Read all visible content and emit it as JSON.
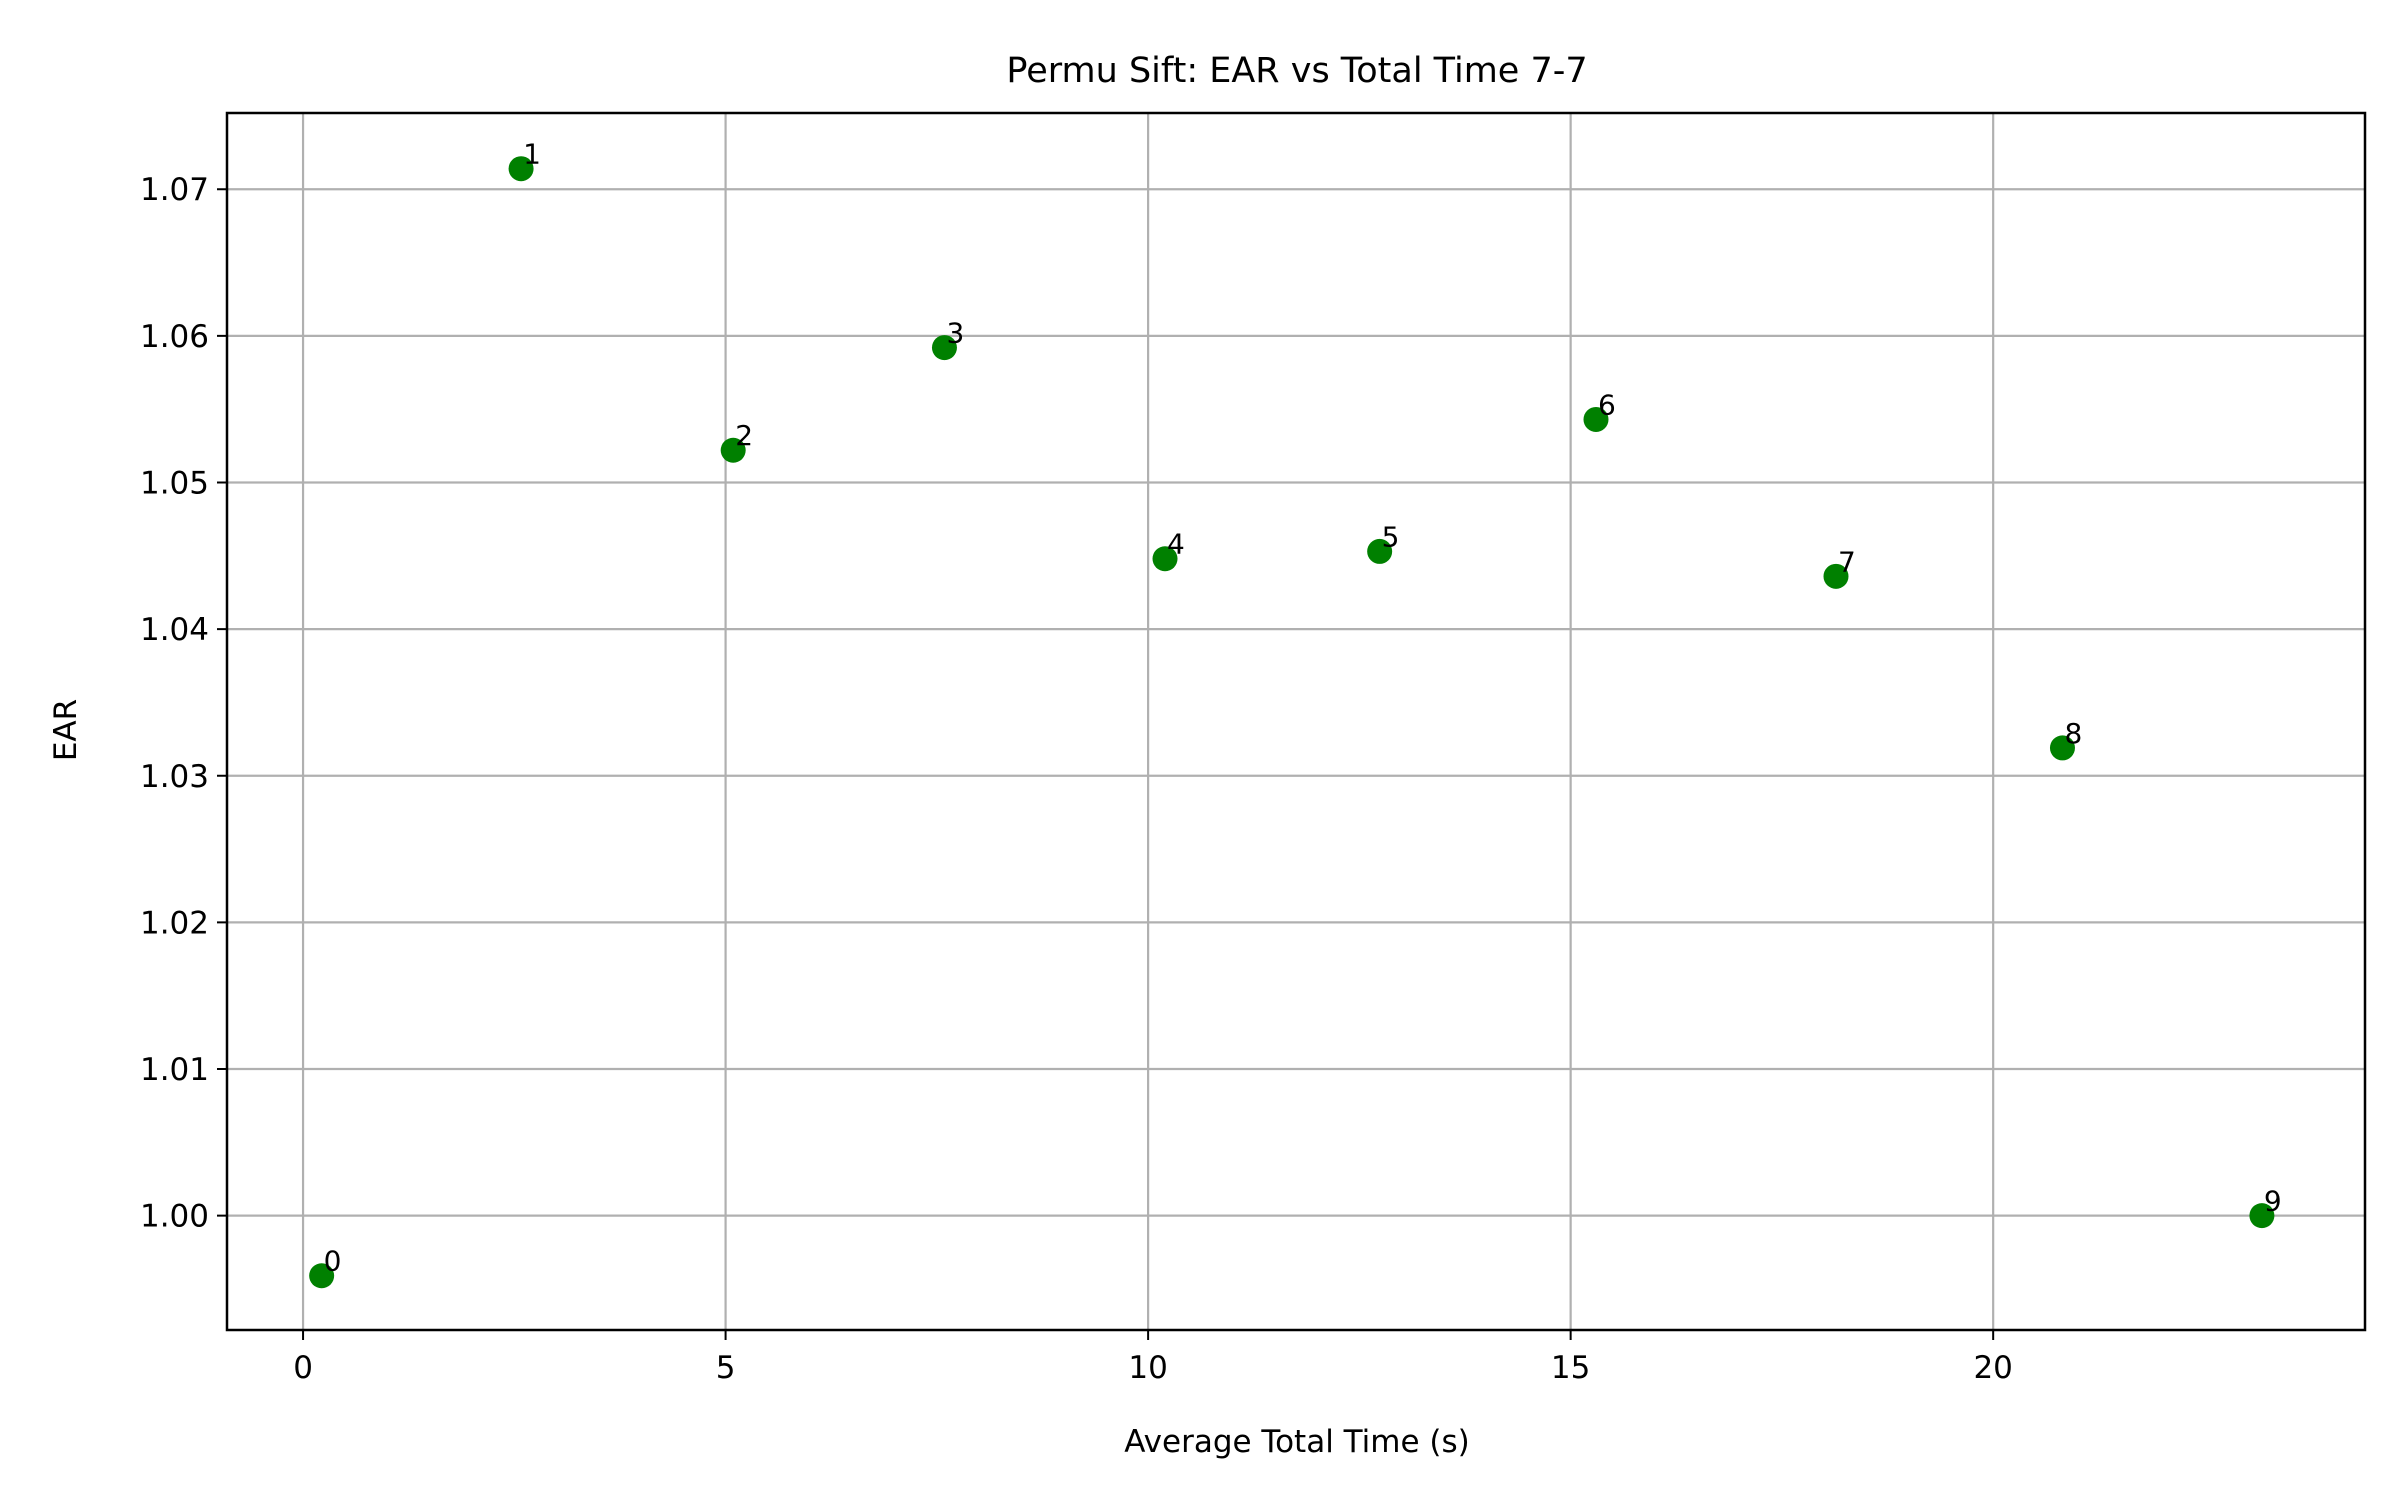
{
  "chart_data": {
    "type": "scatter",
    "title": "Permu Sift: EAR vs Total Time 7-7",
    "xlabel": "Average Total Time (s)",
    "ylabel": "EAR",
    "xlim": [
      -0.9,
      24.4
    ],
    "ylim": [
      0.9922,
      1.0752
    ],
    "xticks": [
      0,
      5,
      10,
      15,
      20
    ],
    "xtick_labels": [
      "0",
      "5",
      "10",
      "15",
      "20"
    ],
    "yticks": [
      1.0,
      1.01,
      1.02,
      1.03,
      1.04,
      1.05,
      1.06,
      1.07
    ],
    "ytick_labels": [
      "1.00",
      "1.01",
      "1.02",
      "1.03",
      "1.04",
      "1.05",
      "1.06",
      "1.07"
    ],
    "grid": true,
    "marker_color": "#008000",
    "points": [
      {
        "label": "0",
        "x": 0.22,
        "y": 0.9959
      },
      {
        "label": "1",
        "x": 2.58,
        "y": 1.0714
      },
      {
        "label": "2",
        "x": 5.09,
        "y": 1.0522
      },
      {
        "label": "3",
        "x": 7.59,
        "y": 1.0592
      },
      {
        "label": "4",
        "x": 10.2,
        "y": 1.0448
      },
      {
        "label": "5",
        "x": 12.74,
        "y": 1.0453
      },
      {
        "label": "6",
        "x": 15.3,
        "y": 1.0543
      },
      {
        "label": "7",
        "x": 18.14,
        "y": 1.0436
      },
      {
        "label": "8",
        "x": 20.82,
        "y": 1.0319
      },
      {
        "label": "9",
        "x": 23.18,
        "y": 1.0
      }
    ]
  }
}
